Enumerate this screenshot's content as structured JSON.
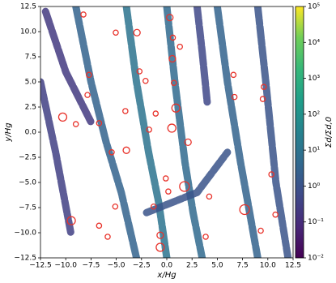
{
  "chart_data": {
    "type": "image",
    "xlabel": "x/Hg",
    "ylabel": "y/Hg",
    "colorbar_label": "Σd/Σd,0",
    "colormap": "viridis",
    "log_color": true,
    "xlim": [
      -12.5,
      12.5
    ],
    "ylim": [
      -12.5,
      12.5
    ],
    "xticks": [
      {
        "value": -12.5,
        "label": "−12.5"
      },
      {
        "value": -10,
        "label": "−10.0"
      },
      {
        "value": -7.5,
        "label": "−7.5"
      },
      {
        "value": -5,
        "label": "−5.0"
      },
      {
        "value": -2.5,
        "label": "−2.5"
      },
      {
        "value": 0,
        "label": "0.0"
      },
      2.5,
      {
        "value": 5,
        "label": "5.0"
      },
      7.5,
      {
        "value": 10,
        "label": "10.0"
      },
      12.5
    ],
    "yticks": [
      {
        "value": -12.5,
        "label": "−12.5"
      },
      {
        "value": -10,
        "label": "−10.0"
      },
      {
        "value": -7.5,
        "label": "−7.5"
      },
      {
        "value": -5,
        "label": "−5.0"
      },
      {
        "value": -2.5,
        "label": "−2.5"
      },
      {
        "value": 0,
        "label": "0.0"
      },
      2.5,
      {
        "value": 5,
        "label": "5.0"
      },
      7.5,
      {
        "value": 10,
        "label": "10.0"
      },
      12.5
    ],
    "clim": [
      0.01,
      100000
    ],
    "cticks": [
      {
        "value": 0.01,
        "label": "10⁻²"
      },
      {
        "value": 0.1,
        "label": "10⁻¹"
      },
      {
        "value": 1,
        "label": "10⁰"
      },
      {
        "value": 10,
        "label": "10¹"
      },
      {
        "value": 100,
        "label": "10²"
      },
      {
        "value": 1000,
        "label": "10³"
      },
      {
        "value": 10000,
        "label": "10⁴"
      },
      {
        "value": 100000,
        "label": "10⁵"
      }
    ],
    "streaks": [
      {
        "x": [
          -9,
          -7.5,
          -6,
          -4.5,
          -3
        ],
        "y": [
          12.5,
          5,
          -1,
          -6,
          -12.5
        ],
        "value": 3
      },
      {
        "x": [
          -4,
          -3,
          -1.8,
          -0.8,
          0
        ],
        "y": [
          12.5,
          5,
          -2,
          -7,
          -12.5
        ],
        "value": 10
      },
      {
        "x": [
          0,
          0.8,
          1.8,
          2.6,
          3.5
        ],
        "y": [
          12.5,
          5,
          -3,
          -8,
          -12.5
        ],
        "value": 5
      },
      {
        "x": [
          5,
          6,
          7.3,
          8.2,
          9
        ],
        "y": [
          12.5,
          5,
          -3,
          -8,
          -12.5
        ],
        "value": 3
      },
      {
        "x": [
          9,
          9.8,
          10.8,
          12
        ],
        "y": [
          12.5,
          5,
          -5,
          -12.5
        ],
        "value": 1
      },
      {
        "x": [
          -12.5,
          -11,
          -9.5
        ],
        "y": [
          5,
          -2,
          -10
        ],
        "value": 0.3
      },
      {
        "x": [
          3,
          3.5,
          4
        ],
        "y": [
          12.5,
          8,
          3
        ],
        "value": 0.5
      },
      {
        "x": [
          -2,
          0.5,
          3,
          6
        ],
        "y": [
          -8,
          -7,
          -6,
          -2
        ],
        "value": 1
      },
      {
        "x": [
          -12,
          -10,
          -7.5
        ],
        "y": [
          12,
          6,
          1
        ],
        "value": 0.2
      }
    ],
    "clumps": {
      "color": "#e8322a",
      "x": [
        -8.25,
        -5.05,
        0.3,
        -2.95,
        0.6,
        1.3,
        0.55,
        -7.7,
        -7.85,
        -2.7,
        -2.1,
        0.7,
        0.9,
        -4.1,
        -1.1,
        -10.3,
        -9.0,
        -6.7,
        0.5,
        2.1,
        6.6,
        6.7,
        -4.0,
        -5.45,
        -0.1,
        1.75,
        0.15,
        4.2,
        7.7,
        -9.45,
        -5.1,
        -1.3,
        -6.7,
        -0.65,
        -0.65,
        -5.85,
        9.3,
        10.75,
        10.35,
        9.6,
        9.5,
        3.85,
        -1.75
      ],
      "y": [
        11.7,
        9.9,
        11.4,
        9.9,
        9.4,
        8.5,
        7.3,
        5.7,
        3.7,
        6.05,
        5.1,
        4.9,
        2.4,
        2.1,
        1.85,
        1.5,
        0.8,
        0.9,
        0.4,
        -1.0,
        5.7,
        3.5,
        -1.8,
        -2.0,
        -4.6,
        -5.4,
        -5.9,
        -6.4,
        -7.7,
        -8.8,
        -7.4,
        -7.4,
        -9.3,
        -10.25,
        -11.45,
        -10.4,
        -9.8,
        -8.2,
        -4.2,
        4.5,
        3.3,
        -10.4,
        0.25
      ],
      "r": [
        0.25,
        0.25,
        0.32,
        0.32,
        0.25,
        0.25,
        0.32,
        0.25,
        0.25,
        0.25,
        0.25,
        0.25,
        0.4,
        0.25,
        0.25,
        0.4,
        0.25,
        0.25,
        0.4,
        0.32,
        0.25,
        0.25,
        0.32,
        0.25,
        0.25,
        0.48,
        0.25,
        0.25,
        0.48,
        0.4,
        0.25,
        0.25,
        0.25,
        0.32,
        0.4,
        0.25,
        0.25,
        0.25,
        0.25,
        0.25,
        0.25,
        0.25,
        0.25
      ]
    }
  }
}
